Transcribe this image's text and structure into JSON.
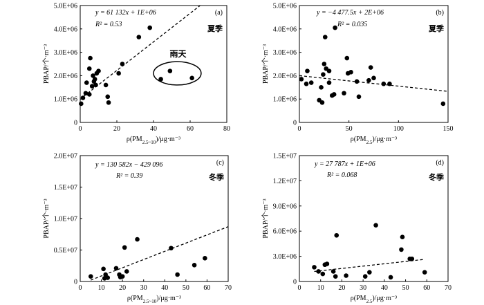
{
  "chart_data": [
    {
      "type": "scatter",
      "panel": "(a)",
      "season": "夏季",
      "equation": "y = 61 132x + 1E+06",
      "r2": "R² = 0.53",
      "xlabel": "ρ(PM2.5~10)/μg·m⁻³",
      "ylabel": "PBAP/个·m⁻³",
      "xlim": [
        0,
        80
      ],
      "ylim": [
        0,
        5000000
      ],
      "xticks": [
        "0",
        "20",
        "40",
        "60",
        "80"
      ],
      "yticks": [
        "0",
        "1.0E+06",
        "2.0E+06",
        "3.0E+06",
        "4.0E+06",
        "5.0E+06"
      ],
      "trend": {
        "slope": 61132,
        "intercept": 1000000
      },
      "annotation": {
        "label": "雨天",
        "cx": 53,
        "cy": 2100000,
        "rx": 13,
        "ry": 500000
      },
      "points": [
        {
          "x": 0.5,
          "y": 800000
        },
        {
          "x": 1.5,
          "y": 1050000
        },
        {
          "x": 3,
          "y": 1250000
        },
        {
          "x": 3.5,
          "y": 1700000
        },
        {
          "x": 5,
          "y": 1200000
        },
        {
          "x": 5,
          "y": 2300000
        },
        {
          "x": 5.5,
          "y": 2750000
        },
        {
          "x": 6.5,
          "y": 1550000
        },
        {
          "x": 7,
          "y": 2000000
        },
        {
          "x": 7.5,
          "y": 1750000
        },
        {
          "x": 8,
          "y": 1850000
        },
        {
          "x": 8.5,
          "y": 1600000
        },
        {
          "x": 9,
          "y": 2100000
        },
        {
          "x": 10,
          "y": 2200000
        },
        {
          "x": 14,
          "y": 1600000
        },
        {
          "x": 15,
          "y": 1100000
        },
        {
          "x": 15.5,
          "y": 850000
        },
        {
          "x": 21,
          "y": 2100000
        },
        {
          "x": 23,
          "y": 2500000
        },
        {
          "x": 32,
          "y": 3650000
        },
        {
          "x": 38,
          "y": 4050000
        },
        {
          "x": 44,
          "y": 1850000
        },
        {
          "x": 49,
          "y": 2200000
        },
        {
          "x": 61,
          "y": 1900000
        }
      ]
    },
    {
      "type": "scatter",
      "panel": "(b)",
      "season": "夏季",
      "equation": "y = −4 477.5x + 2E+06",
      "r2": "R² = 0.035",
      "xlabel": "ρ(PM2.5)/μg·m⁻³",
      "ylabel": "PBAP/个·m⁻³",
      "xlim": [
        0,
        150
      ],
      "ylim": [
        0,
        5000000
      ],
      "xticks": [
        "0",
        "50",
        "100",
        "150"
      ],
      "yticks": [
        "0",
        "1.0E+06",
        "2.0E+06",
        "3.0E+06",
        "4.0E+06",
        "5.0E+06"
      ],
      "trend": {
        "slope": -4477.5,
        "intercept": 2000000
      },
      "points": [
        {
          "x": 2,
          "y": 1850000
        },
        {
          "x": 7,
          "y": 1650000
        },
        {
          "x": 8,
          "y": 2200000
        },
        {
          "x": 12,
          "y": 1700000
        },
        {
          "x": 20,
          "y": 950000
        },
        {
          "x": 22,
          "y": 1500000
        },
        {
          "x": 23,
          "y": 850000
        },
        {
          "x": 24,
          "y": 2050000
        },
        {
          "x": 25,
          "y": 2500000
        },
        {
          "x": 26,
          "y": 3650000
        },
        {
          "x": 27,
          "y": 2300000
        },
        {
          "x": 30,
          "y": 1700000
        },
        {
          "x": 30,
          "y": 2200000
        },
        {
          "x": 33,
          "y": 1150000
        },
        {
          "x": 35,
          "y": 1200000
        },
        {
          "x": 36,
          "y": 4050000
        },
        {
          "x": 45,
          "y": 1250000
        },
        {
          "x": 48,
          "y": 2750000
        },
        {
          "x": 49,
          "y": 2100000
        },
        {
          "x": 52,
          "y": 2150000
        },
        {
          "x": 58,
          "y": 1750000
        },
        {
          "x": 60,
          "y": 1100000
        },
        {
          "x": 70,
          "y": 1800000
        },
        {
          "x": 72,
          "y": 2350000
        },
        {
          "x": 75,
          "y": 1900000
        },
        {
          "x": 85,
          "y": 1650000
        },
        {
          "x": 91,
          "y": 1650000
        },
        {
          "x": 145,
          "y": 800000
        }
      ]
    },
    {
      "type": "scatter",
      "panel": "(c)",
      "season": "冬季",
      "equation": "y = 130 582x − 429 096",
      "r2": "R² = 0.39",
      "xlabel": "ρ(PM2.5~10)/μg·m⁻³",
      "ylabel": "PBAP/个·m⁻³",
      "xlim": [
        0,
        70
      ],
      "ylim": [
        0,
        20000000
      ],
      "xticks": [
        "0",
        "10",
        "20",
        "30",
        "40",
        "50",
        "60",
        "70"
      ],
      "yticks": [
        "0",
        "0.5E+07",
        "1.0E+07",
        "1.5E+07",
        "2.0E+07"
      ],
      "trend": {
        "slope": 130582,
        "intercept": -429096
      },
      "points": [
        {
          "x": 5,
          "y": 800000
        },
        {
          "x": 11,
          "y": 2000000
        },
        {
          "x": 11.5,
          "y": 500000
        },
        {
          "x": 12,
          "y": 1100000
        },
        {
          "x": 13,
          "y": 600000
        },
        {
          "x": 17,
          "y": 2100000
        },
        {
          "x": 18.5,
          "y": 1100000
        },
        {
          "x": 19,
          "y": 700000
        },
        {
          "x": 20,
          "y": 800000
        },
        {
          "x": 21,
          "y": 5400000
        },
        {
          "x": 22,
          "y": 1600000
        },
        {
          "x": 27,
          "y": 6700000
        },
        {
          "x": 43,
          "y": 5300000
        },
        {
          "x": 46,
          "y": 1100000
        },
        {
          "x": 54,
          "y": 2600000
        },
        {
          "x": 59,
          "y": 3700000
        }
      ]
    },
    {
      "type": "scatter",
      "panel": "(d)",
      "season": "冬季",
      "equation": "y = 27 787x + 1E+06",
      "r2": "R² = 0.068",
      "xlabel": "ρ(PM2.5)/μg·m⁻³",
      "ylabel": "PBAP/个·m⁻³",
      "xlim": [
        0,
        70
      ],
      "ylim": [
        0,
        15000000
      ],
      "xticks": [
        "0",
        "10",
        "20",
        "30",
        "40",
        "50",
        "60",
        "70"
      ],
      "yticks": [
        "0",
        "3.0E+06",
        "6.0E+06",
        "9.0E+06",
        "1.2E+07",
        "1.5E+07"
      ],
      "trend": {
        "slope": 27787,
        "intercept": 1000000
      },
      "points": [
        {
          "x": 7,
          "y": 1700000
        },
        {
          "x": 9,
          "y": 1200000
        },
        {
          "x": 11,
          "y": 900000
        },
        {
          "x": 12,
          "y": 2000000
        },
        {
          "x": 13,
          "y": 2100000
        },
        {
          "x": 16,
          "y": 1200000
        },
        {
          "x": 17,
          "y": 600000
        },
        {
          "x": 17.5,
          "y": 5500000
        },
        {
          "x": 22,
          "y": 700000
        },
        {
          "x": 31,
          "y": 600000
        },
        {
          "x": 33,
          "y": 1100000
        },
        {
          "x": 36,
          "y": 6700000
        },
        {
          "x": 43,
          "y": 500000
        },
        {
          "x": 48,
          "y": 3800000
        },
        {
          "x": 48.5,
          "y": 5300000
        },
        {
          "x": 52,
          "y": 2700000
        },
        {
          "x": 53,
          "y": 2700000
        },
        {
          "x": 59,
          "y": 1100000
        }
      ]
    }
  ]
}
